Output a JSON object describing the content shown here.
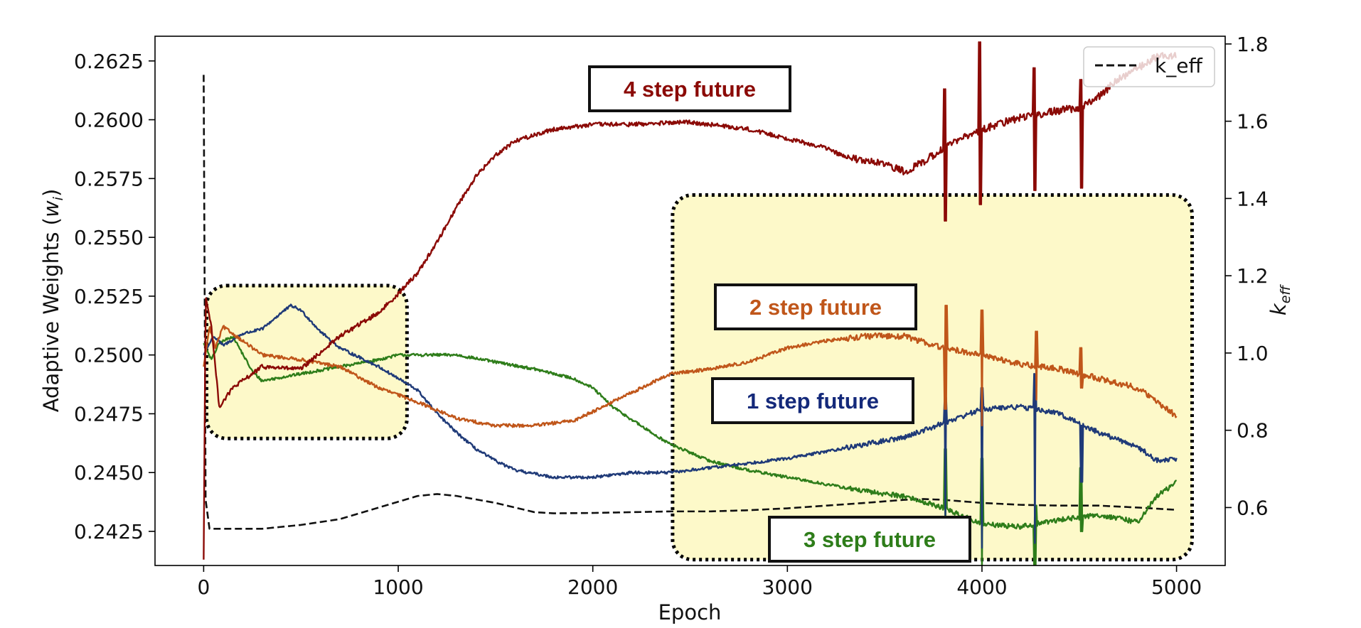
{
  "chart_data": {
    "type": "line",
    "title": "",
    "xlabel": "Epoch",
    "ylabel": "Adaptive Weights (w_i)",
    "ylabel_parts": {
      "main": "Adaptive Weights (",
      "var": "w",
      "sub": "i",
      "end": ")"
    },
    "y2label": {
      "var": "k",
      "sub": "eff"
    },
    "xlim": [
      -250,
      5250
    ],
    "ylim": [
      0.24105,
      0.26355
    ],
    "y2lim": [
      0.45,
      1.82
    ],
    "x_ticks": [
      0,
      1000,
      2000,
      3000,
      4000,
      5000
    ],
    "x_tick_labels": [
      "0",
      "1000",
      "2000",
      "3000",
      "4000",
      "5000"
    ],
    "y_ticks": [
      0.2425,
      0.245,
      0.2475,
      0.25,
      0.2525,
      0.255,
      0.2575,
      0.26,
      0.2625
    ],
    "y_tick_labels": [
      "0.2425",
      "0.2450",
      "0.2475",
      "0.2500",
      "0.2525",
      "0.2550",
      "0.2575",
      "0.2600",
      "0.2625"
    ],
    "y2_ticks": [
      0.6,
      0.8,
      1.0,
      1.2,
      1.4,
      1.6,
      1.8
    ],
    "y2_tick_labels": [
      "0.6",
      "0.8",
      "1.0",
      "1.2",
      "1.4",
      "1.6",
      "1.8"
    ],
    "legend": {
      "entries": [
        "k_eff"
      ],
      "placement": "top-right"
    },
    "series": [
      {
        "name": "4 step future",
        "color": "#8B0A06",
        "axis": "left",
        "noise": 9e-05,
        "points": [
          [
            0,
            0.2413
          ],
          [
            10,
            0.2525
          ],
          [
            40,
            0.2512
          ],
          [
            80,
            0.2478
          ],
          [
            150,
            0.2486
          ],
          [
            300,
            0.2495
          ],
          [
            500,
            0.2494
          ],
          [
            700,
            0.2508
          ],
          [
            900,
            0.2518
          ],
          [
            1000,
            0.2526
          ],
          [
            1100,
            0.2535
          ],
          [
            1200,
            0.2548
          ],
          [
            1300,
            0.2563
          ],
          [
            1400,
            0.2576
          ],
          [
            1500,
            0.2585
          ],
          [
            1600,
            0.2591
          ],
          [
            1800,
            0.2596
          ],
          [
            2000,
            0.2598
          ],
          [
            2200,
            0.2598
          ],
          [
            2500,
            0.2599
          ],
          [
            2800,
            0.2596
          ],
          [
            3000,
            0.2592
          ],
          [
            3200,
            0.2588
          ],
          [
            3300,
            0.2584
          ],
          [
            3500,
            0.2581
          ],
          [
            3600,
            0.2578
          ],
          [
            3700,
            0.2582
          ],
          [
            3800,
            0.2588
          ],
          [
            3900,
            0.2592
          ],
          [
            4000,
            0.2596
          ],
          [
            4200,
            0.2601
          ],
          [
            4400,
            0.2604
          ],
          [
            4500,
            0.2605
          ],
          [
            4600,
            0.261
          ],
          [
            4700,
            0.2617
          ],
          [
            4800,
            0.2622
          ],
          [
            4900,
            0.2627
          ],
          [
            5000,
            0.2627
          ]
        ],
        "spikes": [
          [
            3810,
            0.2557,
            0.2613
          ],
          [
            3990,
            0.2564,
            0.2633
          ],
          [
            4270,
            0.257,
            0.2622
          ],
          [
            4510,
            0.2571,
            0.2617
          ]
        ]
      },
      {
        "name": "2 step future",
        "color": "#C0561A",
        "axis": "left",
        "noise": 7e-05,
        "points": [
          [
            0,
            0.2495
          ],
          [
            30,
            0.2512
          ],
          [
            60,
            0.2503
          ],
          [
            100,
            0.2512
          ],
          [
            200,
            0.2506
          ],
          [
            300,
            0.25
          ],
          [
            500,
            0.2498
          ],
          [
            700,
            0.2495
          ],
          [
            900,
            0.2486
          ],
          [
            1100,
            0.248
          ],
          [
            1300,
            0.2473
          ],
          [
            1500,
            0.247
          ],
          [
            1700,
            0.247
          ],
          [
            1900,
            0.2472
          ],
          [
            2000,
            0.2476
          ],
          [
            2200,
            0.2484
          ],
          [
            2400,
            0.2492
          ],
          [
            2600,
            0.2494
          ],
          [
            2800,
            0.2497
          ],
          [
            3000,
            0.2503
          ],
          [
            3200,
            0.2506
          ],
          [
            3400,
            0.2508
          ],
          [
            3600,
            0.2508
          ],
          [
            3800,
            0.2503
          ],
          [
            4000,
            0.25
          ],
          [
            4200,
            0.2496
          ],
          [
            4400,
            0.2494
          ],
          [
            4600,
            0.249
          ],
          [
            4800,
            0.2486
          ],
          [
            5000,
            0.2474
          ]
        ],
        "spikes": [
          [
            3815,
            0.2477,
            0.2521
          ],
          [
            4000,
            0.247,
            0.2519
          ],
          [
            4280,
            0.2481,
            0.251
          ],
          [
            4510,
            0.2486,
            0.2503
          ]
        ]
      },
      {
        "name": "1 step future",
        "color": "#1F3A78",
        "axis": "left",
        "noise": 6e-05,
        "points": [
          [
            0,
            0.25
          ],
          [
            50,
            0.2508
          ],
          [
            100,
            0.2504
          ],
          [
            200,
            0.2509
          ],
          [
            300,
            0.2511
          ],
          [
            400,
            0.2518
          ],
          [
            450,
            0.2521
          ],
          [
            500,
            0.2519
          ],
          [
            600,
            0.251
          ],
          [
            700,
            0.2503
          ],
          [
            800,
            0.2499
          ],
          [
            900,
            0.2495
          ],
          [
            1000,
            0.249
          ],
          [
            1100,
            0.2485
          ],
          [
            1200,
            0.2475
          ],
          [
            1300,
            0.2467
          ],
          [
            1400,
            0.246
          ],
          [
            1500,
            0.2455
          ],
          [
            1600,
            0.2451
          ],
          [
            1800,
            0.2448
          ],
          [
            2000,
            0.2448
          ],
          [
            2200,
            0.245
          ],
          [
            2400,
            0.245
          ],
          [
            2600,
            0.2452
          ],
          [
            2800,
            0.2454
          ],
          [
            3000,
            0.2456
          ],
          [
            3200,
            0.2459
          ],
          [
            3400,
            0.2462
          ],
          [
            3600,
            0.2465
          ],
          [
            3800,
            0.2471
          ],
          [
            3900,
            0.2474
          ],
          [
            4000,
            0.2477
          ],
          [
            4200,
            0.2478
          ],
          [
            4400,
            0.2475
          ],
          [
            4600,
            0.2467
          ],
          [
            4800,
            0.2461
          ],
          [
            4900,
            0.2455
          ],
          [
            5000,
            0.2456
          ]
        ],
        "spikes": [
          [
            3812,
            0.2432,
            0.2482
          ],
          [
            4000,
            0.2418,
            0.2486
          ],
          [
            4272,
            0.242,
            0.2492
          ],
          [
            4510,
            0.2446,
            0.247
          ]
        ]
      },
      {
        "name": "3 step future",
        "color": "#2E7D1A",
        "axis": "left",
        "noise": 6e-05,
        "points": [
          [
            0,
            0.2505
          ],
          [
            40,
            0.2498
          ],
          [
            80,
            0.2505
          ],
          [
            150,
            0.2508
          ],
          [
            250,
            0.2493
          ],
          [
            300,
            0.2489
          ],
          [
            500,
            0.2492
          ],
          [
            700,
            0.2495
          ],
          [
            900,
            0.2498
          ],
          [
            1000,
            0.25
          ],
          [
            1100,
            0.25
          ],
          [
            1300,
            0.25
          ],
          [
            1500,
            0.2497
          ],
          [
            1700,
            0.2494
          ],
          [
            1900,
            0.249
          ],
          [
            2000,
            0.2486
          ],
          [
            2100,
            0.2478
          ],
          [
            2300,
            0.2467
          ],
          [
            2400,
            0.2462
          ],
          [
            2600,
            0.2455
          ],
          [
            2800,
            0.2451
          ],
          [
            3000,
            0.2448
          ],
          [
            3200,
            0.2445
          ],
          [
            3400,
            0.2442
          ],
          [
            3600,
            0.244
          ],
          [
            3800,
            0.2435
          ],
          [
            4000,
            0.2428
          ],
          [
            4200,
            0.2427
          ],
          [
            4400,
            0.243
          ],
          [
            4600,
            0.2432
          ],
          [
            4800,
            0.2429
          ],
          [
            4900,
            0.244
          ],
          [
            5000,
            0.2446
          ]
        ],
        "spikes": [
          [
            3812,
            0.2425,
            0.246
          ],
          [
            4000,
            0.2408,
            0.2456
          ],
          [
            4275,
            0.241,
            0.2436
          ],
          [
            4510,
            0.2425,
            0.2452
          ]
        ]
      },
      {
        "name": "k_eff",
        "color": "#111111",
        "axis": "right",
        "dashed": true,
        "noise": 0,
        "points": [
          [
            0,
            1.72
          ],
          [
            10,
            0.62
          ],
          [
            30,
            0.545
          ],
          [
            300,
            0.545
          ],
          [
            500,
            0.555
          ],
          [
            700,
            0.57
          ],
          [
            900,
            0.6
          ],
          [
            1100,
            0.63
          ],
          [
            1200,
            0.635
          ],
          [
            1300,
            0.63
          ],
          [
            1500,
            0.612
          ],
          [
            1700,
            0.588
          ],
          [
            1800,
            0.585
          ],
          [
            2000,
            0.586
          ],
          [
            2200,
            0.588
          ],
          [
            2400,
            0.59
          ],
          [
            2600,
            0.59
          ],
          [
            2800,
            0.593
          ],
          [
            3000,
            0.598
          ],
          [
            3200,
            0.605
          ],
          [
            3400,
            0.612
          ],
          [
            3600,
            0.62
          ],
          [
            3700,
            0.622
          ],
          [
            3800,
            0.62
          ],
          [
            4000,
            0.612
          ],
          [
            4200,
            0.607
          ],
          [
            4400,
            0.605
          ],
          [
            4600,
            0.605
          ],
          [
            4800,
            0.6
          ],
          [
            5000,
            0.594
          ]
        ],
        "spikes": []
      }
    ],
    "annotations": [
      {
        "text": "4 step future",
        "color": "#8B0A06"
      },
      {
        "text": "2 step future",
        "color": "#C0561A"
      },
      {
        "text": "1 step future",
        "color": "#14297A"
      },
      {
        "text": "3 step future",
        "color": "#2E7D1A"
      }
    ],
    "highlight_regions": [
      {
        "name": "early-training-highlight",
        "x": [
          15,
          1045
        ],
        "y": [
          0.24645,
          0.25295
        ]
      },
      {
        "name": "late-training-highlight",
        "x": [
          2410,
          5080
        ],
        "y": [
          0.2413,
          0.2568
        ]
      }
    ],
    "colors": {
      "highlight_fill": "#FDF9C9",
      "axis": "#000000"
    }
  }
}
